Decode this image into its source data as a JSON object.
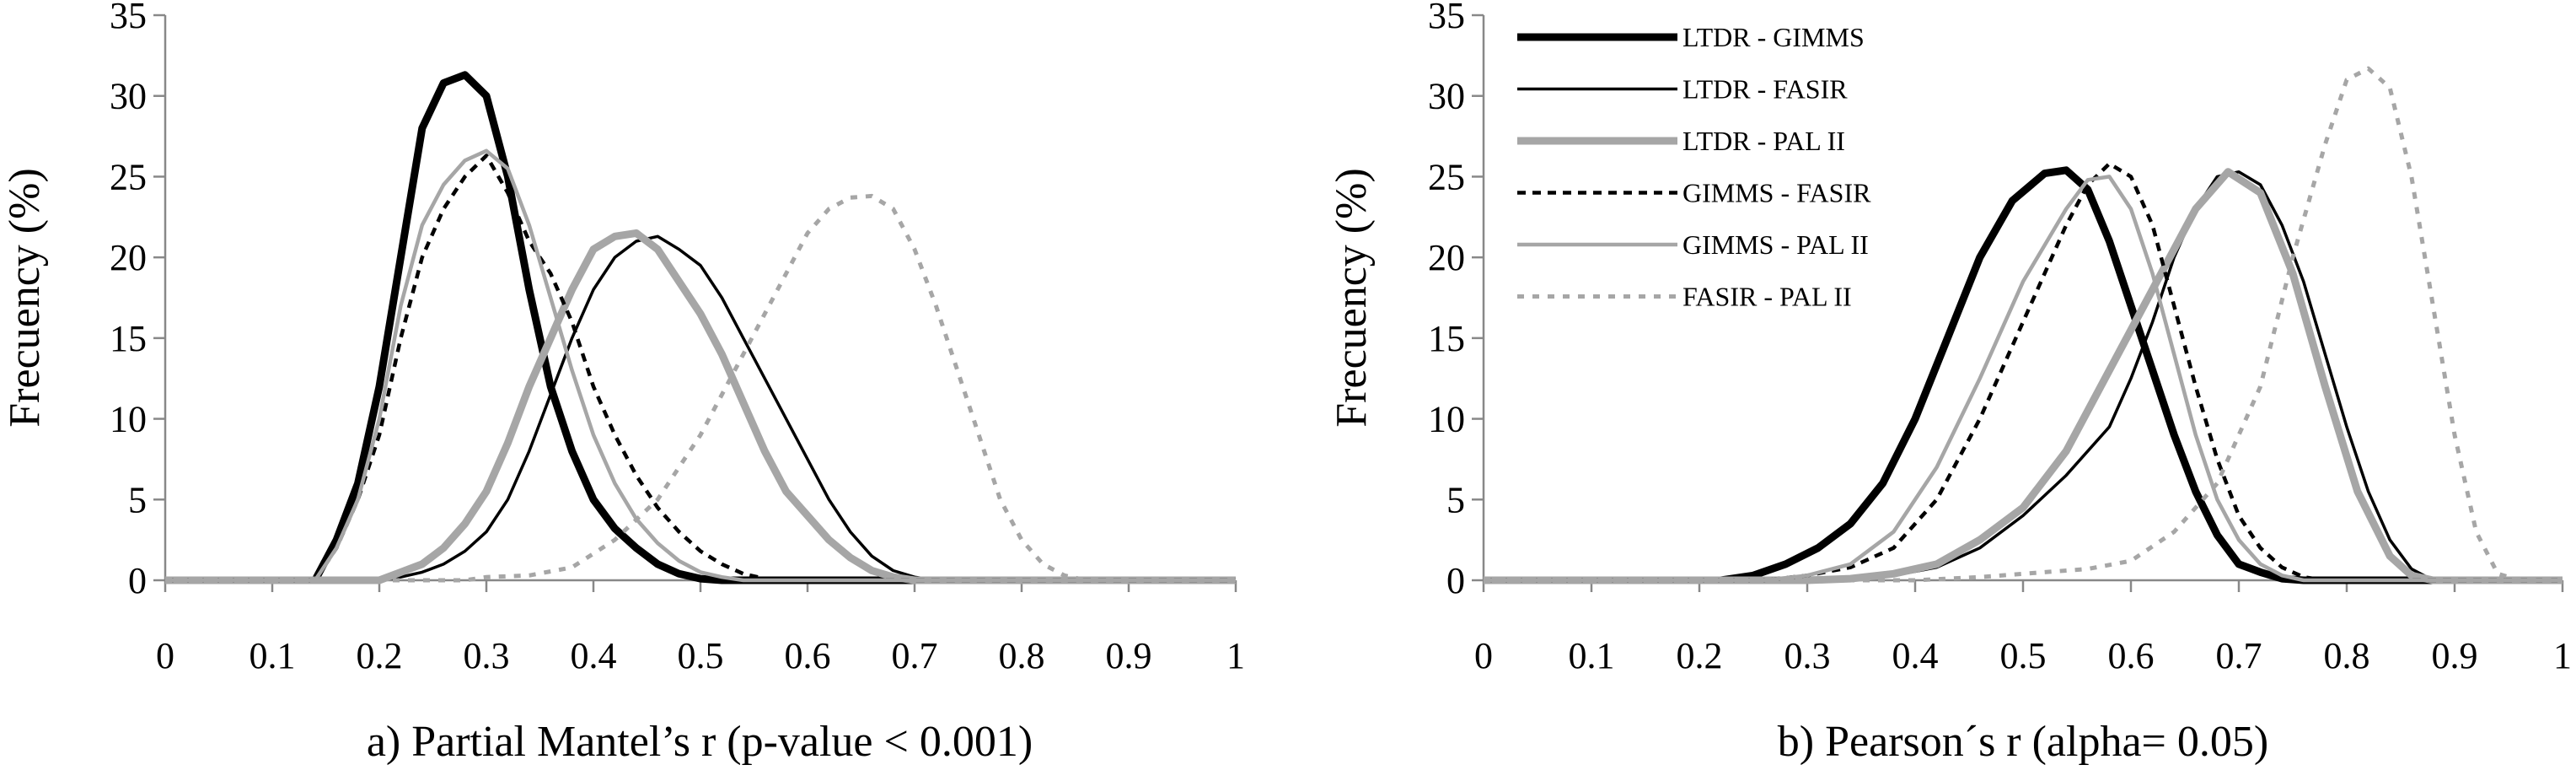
{
  "chart_data": [
    {
      "type": "line",
      "panel": "a",
      "caption": "a) Partial Mantel’s r (p-value < 0.001)",
      "xlabel": "",
      "ylabel": "Frecuency (%)",
      "xlim": [
        0,
        1
      ],
      "ylim": [
        0,
        35
      ],
      "xticks": [
        "0",
        "0.1",
        "0.2",
        "0.3",
        "0.4",
        "0.5",
        "0.6",
        "0.7",
        "0.8",
        "0.9",
        "1"
      ],
      "yticks": [
        "0",
        "5",
        "10",
        "15",
        "20",
        "25",
        "30",
        "35"
      ],
      "grid": false,
      "series": [
        {
          "name": "LTDR - GIMMS",
          "color": "#000000",
          "width": 9,
          "dash": "",
          "x": [
            0,
            0.14,
            0.16,
            0.18,
            0.2,
            0.22,
            0.24,
            0.26,
            0.28,
            0.3,
            0.32,
            0.34,
            0.36,
            0.38,
            0.4,
            0.42,
            0.44,
            0.46,
            0.48,
            0.5,
            0.52,
            0.54,
            1
          ],
          "y": [
            0,
            0,
            2.5,
            6,
            12,
            20,
            28,
            30.8,
            31.3,
            30,
            25,
            18,
            12,
            8,
            5,
            3.2,
            2,
            1,
            0.4,
            0.1,
            0,
            0,
            0
          ]
        },
        {
          "name": "LTDR - FASIR",
          "color": "#000000",
          "width": 3.5,
          "dash": "",
          "x": [
            0,
            0.2,
            0.22,
            0.24,
            0.26,
            0.28,
            0.3,
            0.32,
            0.34,
            0.36,
            0.38,
            0.4,
            0.42,
            0.44,
            0.46,
            0.48,
            0.5,
            0.52,
            0.54,
            0.56,
            0.58,
            0.6,
            0.62,
            0.64,
            0.66,
            0.68,
            0.7,
            0.72,
            1
          ],
          "y": [
            0,
            0,
            0.2,
            0.5,
            1,
            1.8,
            3,
            5,
            8,
            11.5,
            15,
            18,
            20,
            21,
            21.3,
            20.5,
            19.5,
            17.5,
            15,
            12.5,
            10,
            7.5,
            5,
            3,
            1.5,
            0.6,
            0.2,
            0,
            0
          ]
        },
        {
          "name": "LTDR - PAL II",
          "color": "#a6a6a6",
          "width": 9,
          "dash": "",
          "x": [
            0,
            0.2,
            0.22,
            0.24,
            0.26,
            0.28,
            0.3,
            0.32,
            0.34,
            0.36,
            0.38,
            0.4,
            0.42,
            0.44,
            0.46,
            0.48,
            0.5,
            0.52,
            0.54,
            0.56,
            0.58,
            0.6,
            0.62,
            0.64,
            0.66,
            0.68,
            0.7,
            1
          ],
          "y": [
            0,
            0,
            0.5,
            1,
            2,
            3.5,
            5.5,
            8.5,
            12,
            15,
            18,
            20.5,
            21.3,
            21.5,
            20.5,
            18.5,
            16.5,
            14,
            11,
            8,
            5.5,
            4,
            2.5,
            1.4,
            0.6,
            0.2,
            0,
            0
          ]
        },
        {
          "name": "GIMMS - FASIR",
          "color": "#000000",
          "width": 4.5,
          "dash": "10 8",
          "x": [
            0,
            0.14,
            0.16,
            0.18,
            0.2,
            0.22,
            0.24,
            0.26,
            0.28,
            0.3,
            0.32,
            0.34,
            0.36,
            0.38,
            0.4,
            0.42,
            0.44,
            0.46,
            0.48,
            0.5,
            0.52,
            0.54,
            0.56,
            0.58,
            1
          ],
          "y": [
            0,
            0,
            2,
            5,
            9,
            15,
            20,
            23,
            25,
            26.3,
            24,
            21,
            19,
            16,
            12,
            9,
            6.5,
            4.5,
            3,
            1.8,
            1,
            0.4,
            0.1,
            0,
            0
          ]
        },
        {
          "name": "GIMMS - PAL II",
          "color": "#a6a6a6",
          "width": 4.5,
          "dash": "",
          "x": [
            0,
            0.14,
            0.16,
            0.18,
            0.2,
            0.22,
            0.24,
            0.26,
            0.28,
            0.3,
            0.32,
            0.34,
            0.36,
            0.38,
            0.4,
            0.42,
            0.44,
            0.46,
            0.48,
            0.5,
            0.52,
            0.54,
            0.56,
            1
          ],
          "y": [
            0,
            0,
            2,
            5,
            10,
            17,
            22,
            24.5,
            26,
            26.6,
            25.5,
            22,
            17.5,
            13,
            9,
            6,
            3.8,
            2.3,
            1.2,
            0.5,
            0.2,
            0,
            0,
            0
          ]
        },
        {
          "name": "FASIR - PAL II",
          "color": "#a6a6a6",
          "width": 5,
          "dash": "8 10",
          "x": [
            0,
            0.28,
            0.3,
            0.34,
            0.38,
            0.42,
            0.46,
            0.5,
            0.54,
            0.58,
            0.6,
            0.62,
            0.64,
            0.66,
            0.68,
            0.7,
            0.72,
            0.74,
            0.76,
            0.78,
            0.8,
            0.82,
            0.84,
            0.86,
            0.88,
            1
          ],
          "y": [
            0,
            0,
            0.2,
            0.3,
            0.8,
            2.5,
            5,
            9,
            14,
            19,
            21.5,
            23,
            23.7,
            23.8,
            23,
            20.5,
            17,
            13,
            9,
            5,
            2.5,
            1,
            0.3,
            0,
            0,
            0
          ]
        }
      ]
    },
    {
      "type": "line",
      "panel": "b",
      "caption": "b) Pearson´s r (alpha= 0.05)",
      "xlabel": "",
      "ylabel": "Frecuency (%)",
      "xlim": [
        0,
        1
      ],
      "ylim": [
        0,
        35
      ],
      "xticks": [
        "0",
        "0.1",
        "0.2",
        "0.3",
        "0.4",
        "0.5",
        "0.6",
        "0.7",
        "0.8",
        "0.9",
        "1"
      ],
      "yticks": [
        "0",
        "5",
        "10",
        "15",
        "20",
        "25",
        "30",
        "35"
      ],
      "grid": false,
      "legend_position": "top-left",
      "series": [
        {
          "name": "LTDR - GIMMS",
          "color": "#000000",
          "width": 9,
          "dash": "",
          "x": [
            0,
            0.22,
            0.25,
            0.28,
            0.31,
            0.34,
            0.37,
            0.4,
            0.43,
            0.46,
            0.49,
            0.52,
            0.54,
            0.56,
            0.58,
            0.6,
            0.62,
            0.64,
            0.66,
            0.68,
            0.7,
            0.72,
            0.74,
            0.76,
            1
          ],
          "y": [
            0,
            0,
            0.3,
            1,
            2,
            3.5,
            6,
            10,
            15,
            20,
            23.5,
            25.2,
            25.4,
            24.2,
            21,
            17,
            13,
            9,
            5.5,
            2.8,
            1,
            0.5,
            0.1,
            0,
            0
          ]
        },
        {
          "name": "LTDR - FASIR",
          "color": "#000000",
          "width": 3.5,
          "dash": "",
          "x": [
            0,
            0.3,
            0.34,
            0.38,
            0.42,
            0.46,
            0.5,
            0.54,
            0.58,
            0.6,
            0.62,
            0.64,
            0.66,
            0.68,
            0.7,
            0.72,
            0.74,
            0.76,
            0.78,
            0.8,
            0.82,
            0.84,
            0.86,
            0.88,
            1
          ],
          "y": [
            0,
            0,
            0.1,
            0.3,
            0.8,
            2,
            4,
            6.5,
            9.5,
            12.5,
            16,
            20,
            23,
            25,
            25.3,
            24.5,
            22,
            18.5,
            14,
            9.5,
            5.5,
            2.5,
            0.7,
            0,
            0
          ]
        },
        {
          "name": "LTDR - PAL II",
          "color": "#a6a6a6",
          "width": 9,
          "dash": "",
          "x": [
            0,
            0.3,
            0.34,
            0.38,
            0.42,
            0.46,
            0.5,
            0.54,
            0.58,
            0.62,
            0.66,
            0.69,
            0.72,
            0.75,
            0.78,
            0.81,
            0.84,
            0.86,
            0.88,
            1
          ],
          "y": [
            0,
            0,
            0.1,
            0.4,
            1,
            2.5,
            4.5,
            8,
            13,
            18,
            23,
            25.3,
            24,
            19,
            12,
            5.5,
            1.5,
            0.3,
            0,
            0
          ]
        },
        {
          "name": "GIMMS - FASIR",
          "color": "#000000",
          "width": 4.5,
          "dash": "10 8",
          "x": [
            0,
            0.26,
            0.3,
            0.34,
            0.38,
            0.42,
            0.46,
            0.5,
            0.54,
            0.56,
            0.58,
            0.6,
            0.62,
            0.64,
            0.66,
            0.68,
            0.7,
            0.72,
            0.74,
            0.76,
            0.78,
            0.8,
            1
          ],
          "y": [
            0,
            0,
            0.3,
            0.8,
            2,
            5,
            10,
            16,
            22,
            24.5,
            25.8,
            25,
            22,
            17,
            12,
            7.5,
            4,
            2,
            0.8,
            0.2,
            0,
            0,
            0
          ]
        },
        {
          "name": "GIMMS - PAL II",
          "color": "#a6a6a6",
          "width": 4.5,
          "dash": "",
          "x": [
            0,
            0.26,
            0.3,
            0.34,
            0.38,
            0.42,
            0.46,
            0.5,
            0.54,
            0.56,
            0.58,
            0.6,
            0.62,
            0.64,
            0.66,
            0.68,
            0.7,
            0.72,
            0.74,
            0.76,
            0.78,
            1
          ],
          "y": [
            0,
            0,
            0.3,
            1,
            3,
            7,
            12.5,
            18.5,
            23,
            24.8,
            25,
            23,
            19,
            14,
            9,
            5,
            2.5,
            1,
            0.3,
            0,
            0,
            0
          ]
        },
        {
          "name": "FASIR - PAL II",
          "color": "#a6a6a6",
          "width": 5,
          "dash": "8 10",
          "x": [
            0,
            0.4,
            0.46,
            0.52,
            0.56,
            0.6,
            0.64,
            0.68,
            0.72,
            0.75,
            0.78,
            0.8,
            0.82,
            0.84,
            0.86,
            0.88,
            0.9,
            0.92,
            0.94,
            0.96,
            1
          ],
          "y": [
            0,
            0,
            0.2,
            0.5,
            0.7,
            1.2,
            3,
            6,
            12,
            20,
            27,
            31,
            31.7,
            30.5,
            25,
            17,
            9,
            3,
            0.4,
            0,
            0
          ]
        }
      ]
    }
  ]
}
